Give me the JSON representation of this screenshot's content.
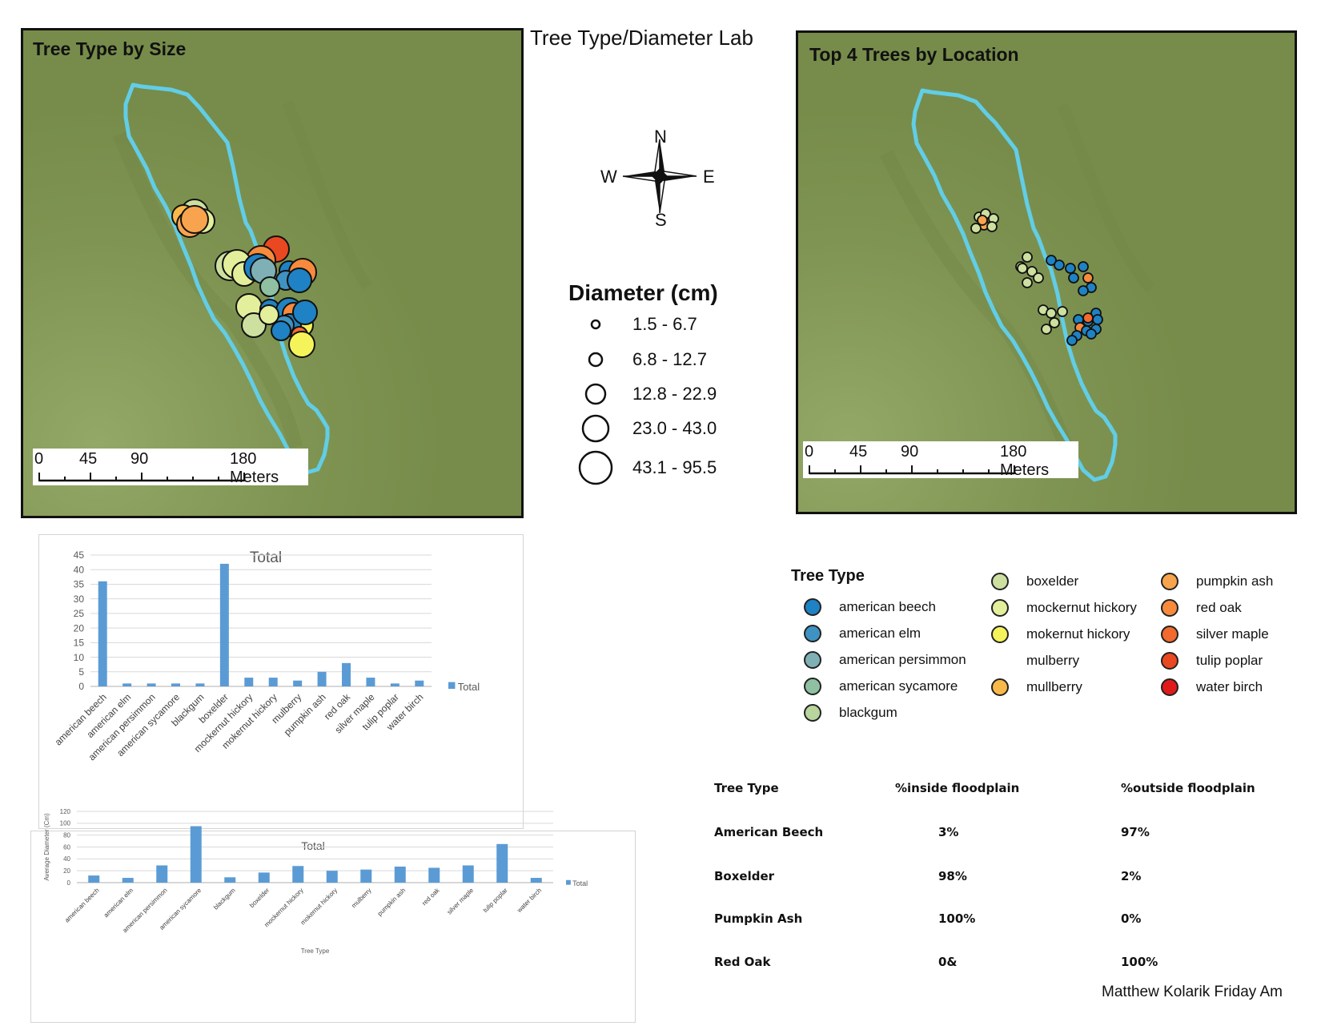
{
  "title": "Tree Type/Diameter Lab",
  "map_left": {
    "title": "Tree Type by Size",
    "scale_labels": [
      "0",
      "45",
      "90",
      "180 Meters"
    ]
  },
  "map_right": {
    "title": "Top 4 Trees by Location",
    "scale_labels": [
      "0",
      "45",
      "90",
      "180 Meters"
    ]
  },
  "compass": {
    "n": "N",
    "s": "S",
    "e": "E",
    "w": "W"
  },
  "size_legend": {
    "title": "Diameter (cm)",
    "classes": [
      "1.5 - 6.7",
      "6.8 - 12.7",
      "12.8 - 22.9",
      "23.0 - 43.0",
      "43.1 - 95.5"
    ]
  },
  "tree_type_legend": {
    "title": "Tree Type",
    "items": [
      {
        "label": "american beech",
        "color": "#1f82c4"
      },
      {
        "label": "american elm",
        "color": "#3f93c2"
      },
      {
        "label": "american persimmon",
        "color": "#7fb0b6"
      },
      {
        "label": "american sycamore",
        "color": "#8fc0a2"
      },
      {
        "label": "blackgum",
        "color": "#b7d59c"
      },
      {
        "label": "boxelder",
        "color": "#cde0a0"
      },
      {
        "label": "mockernut hickory",
        "color": "#e3ef9a"
      },
      {
        "label": "mokernut hickory",
        "color": "#f5f35a"
      },
      {
        "label": "mulberry",
        "color": ""
      },
      {
        "label": "mullberry",
        "color": "#f9b94a"
      },
      {
        "label": "pumpkin ash",
        "color": "#f8a44e"
      },
      {
        "label": "red oak",
        "color": "#f78a3c"
      },
      {
        "label": "silver maple",
        "color": "#f26a2e"
      },
      {
        "label": "tulip poplar",
        "color": "#ea4820"
      },
      {
        "label": "water birch",
        "color": "#e01a1a"
      }
    ]
  },
  "chart_data": [
    {
      "type": "bar",
      "title": "Total",
      "categories": [
        "american beech",
        "american elm",
        "american persimmon",
        "american sycamore",
        "blackgum",
        "boxelder",
        "mockernut hickory",
        "mokernut hickory",
        "mulberry",
        "pumpkin ash",
        "red oak",
        "silver maple",
        "tulip poplar",
        "water birch"
      ],
      "series": [
        {
          "name": "Total",
          "values": [
            36,
            1,
            1,
            1,
            1,
            42,
            3,
            3,
            2,
            5,
            8,
            3,
            1,
            2
          ]
        }
      ],
      "xlabel": "",
      "ylabel": "",
      "ylim": [
        0,
        45
      ],
      "yticks": [
        0,
        5,
        10,
        15,
        20,
        25,
        30,
        35,
        40,
        45
      ],
      "legend": "right",
      "grid": true,
      "color": "#5b9bd5"
    },
    {
      "type": "bar",
      "title": "Total",
      "categories": [
        "american beech",
        "american elm",
        "american persimmon",
        "american sycamore",
        "blackgum",
        "boxelder",
        "mockernut hickory",
        "mokernut hickory",
        "mulberry",
        "pumpkin ash",
        "red oak",
        "silver maple",
        "tulip poplar",
        "water birch"
      ],
      "series": [
        {
          "name": "Total",
          "values": [
            12,
            8,
            29,
            95,
            9,
            17,
            28,
            20,
            22,
            27,
            25,
            29,
            65,
            8
          ]
        }
      ],
      "xlabel": "Tree Type",
      "ylabel": "Average Diameter (Cm)",
      "ylim": [
        0,
        120
      ],
      "yticks": [
        0,
        20,
        40,
        60,
        80,
        100,
        120
      ],
      "legend": "right",
      "grid": true,
      "color": "#5b9bd5"
    }
  ],
  "table": {
    "headers": [
      "Tree Type",
      "%inside floodplain",
      "%outside floodplain"
    ],
    "rows": [
      [
        "American Beech",
        "3%",
        "97%"
      ],
      [
        "Boxelder",
        "98%",
        "2%"
      ],
      [
        "Pumpkin Ash",
        "100%",
        "0%"
      ],
      [
        "Red Oak",
        "0&",
        "100%"
      ]
    ]
  },
  "author": "Matthew Kolarik Friday Am"
}
